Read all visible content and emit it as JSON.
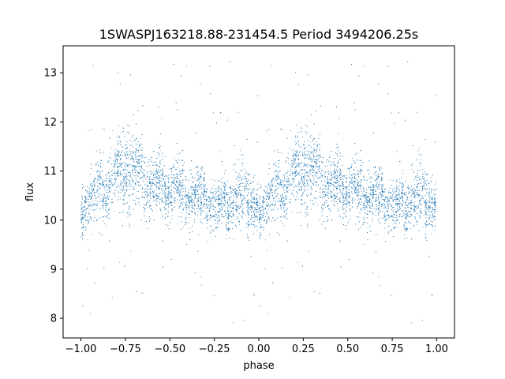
{
  "chart_data": {
    "type": "scatter",
    "title": "1SWASPJ163218.88-231454.5 Period 3494206.25s",
    "xlabel": "phase",
    "ylabel": "flux",
    "xlim": [
      -1.1,
      1.1
    ],
    "ylim": [
      7.6,
      13.55
    ],
    "x_ticks": [
      -1.0,
      -0.75,
      -0.5,
      -0.25,
      0.0,
      0.25,
      0.5,
      0.75,
      1.0
    ],
    "x_tick_labels": [
      "−1.00",
      "−0.75",
      "−0.50",
      "−0.25",
      "0.00",
      "0.25",
      "0.50",
      "0.75",
      "1.00"
    ],
    "y_ticks": [
      8,
      9,
      10,
      11,
      12,
      13
    ],
    "y_tick_labels": [
      "8",
      "9",
      "10",
      "11",
      "12",
      "13"
    ],
    "grid": false,
    "marker_color": "#1f77b4",
    "phase_profile": {
      "phase": [
        0.0,
        0.05,
        0.1,
        0.15,
        0.2,
        0.25,
        0.3,
        0.35,
        0.4,
        0.45,
        0.5,
        0.55,
        0.6,
        0.65,
        0.7,
        0.75,
        0.8,
        0.85,
        0.9,
        0.95,
        1.0
      ],
      "median_flux": [
        10.3,
        10.4,
        10.6,
        10.7,
        10.9,
        11.1,
        11.0,
        10.8,
        10.7,
        10.7,
        10.6,
        10.6,
        10.5,
        10.5,
        10.4,
        10.3,
        10.3,
        10.4,
        10.5,
        10.4,
        10.3
      ],
      "spread": [
        0.35,
        0.4,
        0.45,
        0.45,
        0.5,
        0.6,
        0.55,
        0.5,
        0.45,
        0.45,
        0.4,
        0.4,
        0.4,
        0.4,
        0.35,
        0.35,
        0.35,
        0.4,
        0.45,
        0.4,
        0.35
      ]
    },
    "outlier_range": [
      7.9,
      13.3
    ],
    "point_count": 9000
  }
}
